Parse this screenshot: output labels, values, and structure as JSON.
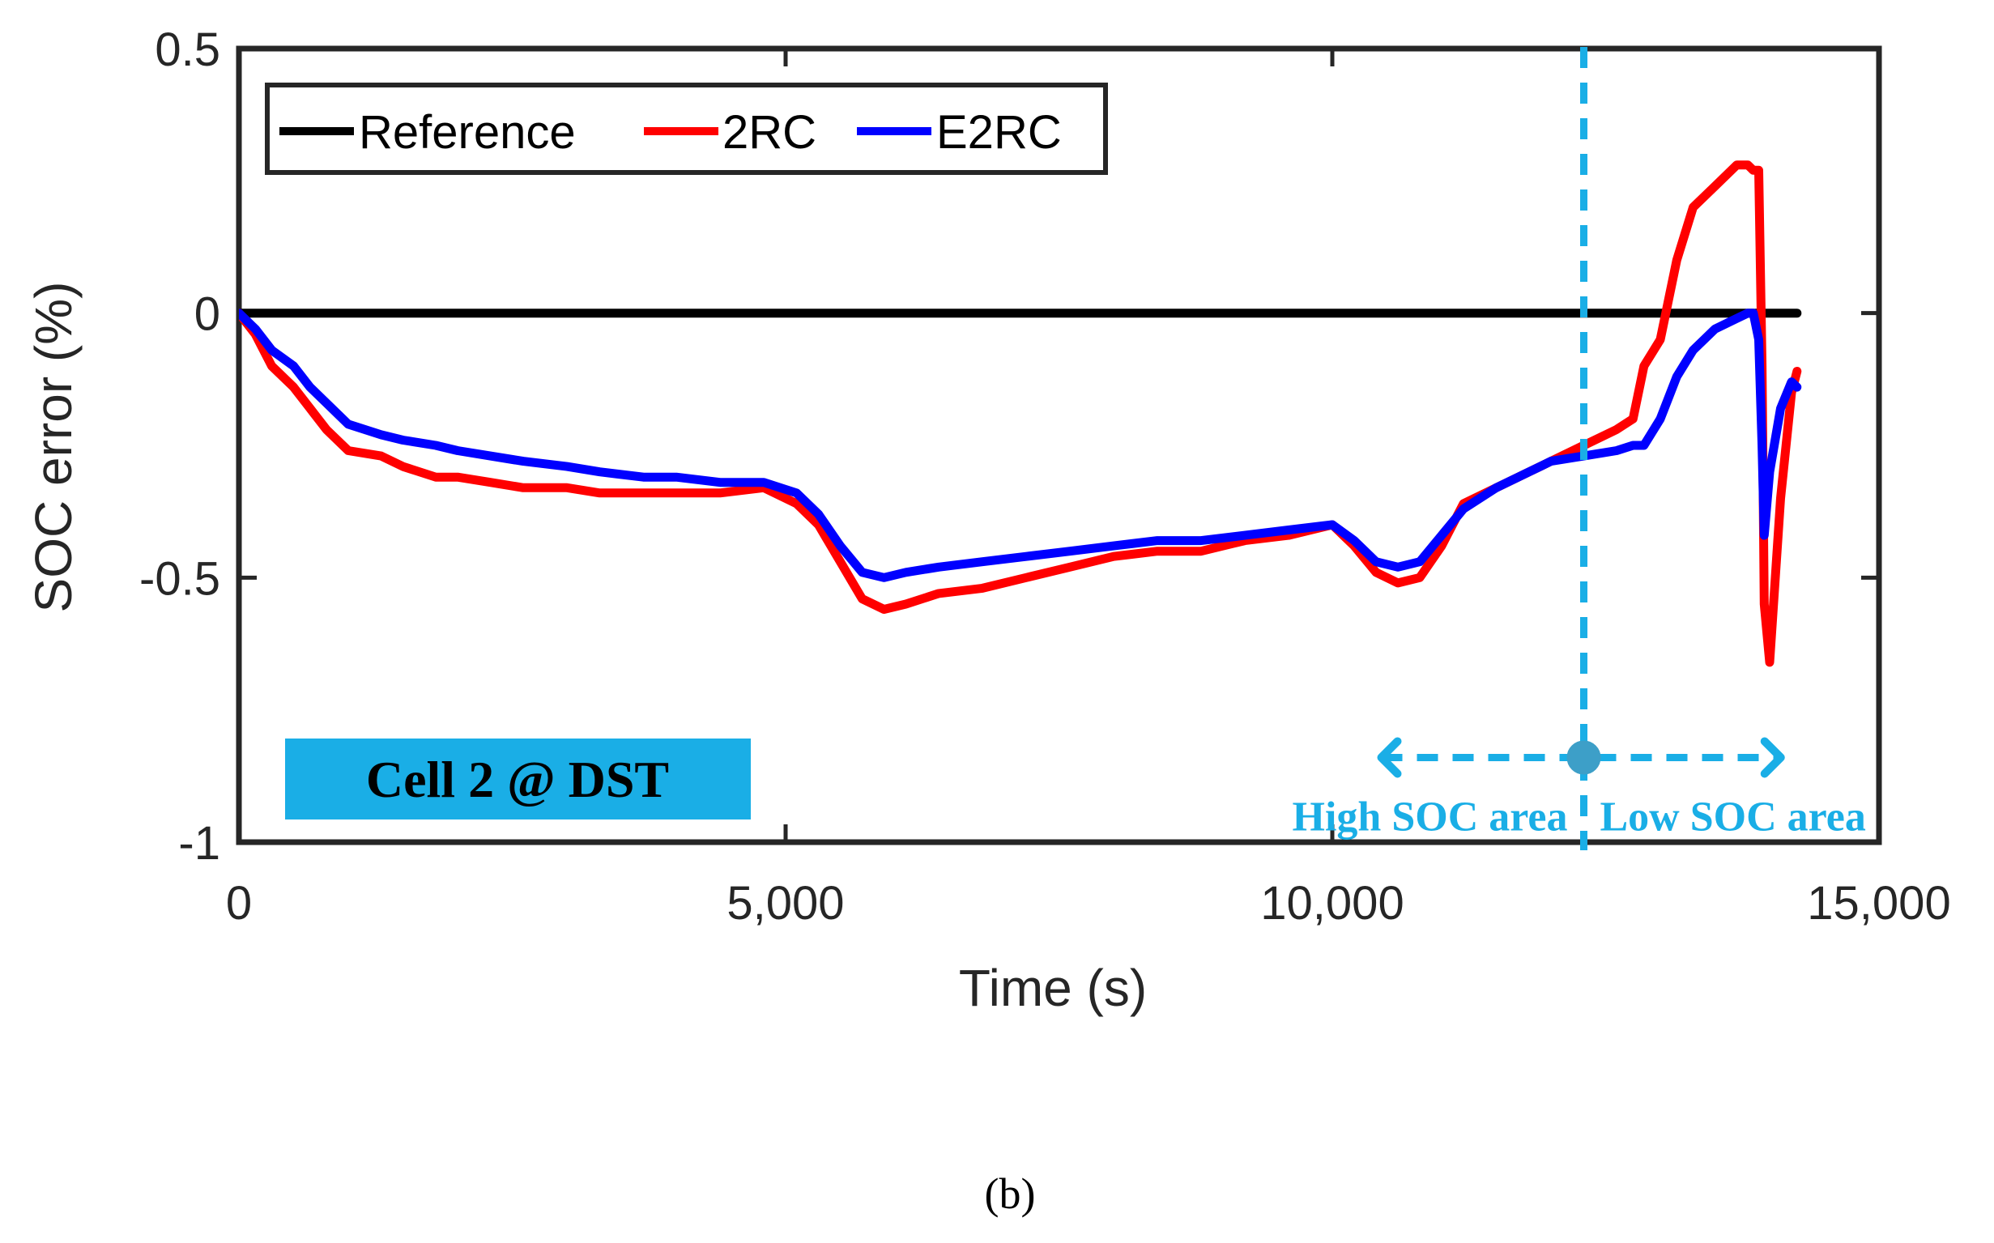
{
  "chart_data": {
    "type": "line",
    "title": "",
    "xlabel": "Time (s)",
    "ylabel": "SOC error (%)",
    "xlim": [
      0,
      15000
    ],
    "ylim": [
      -1,
      0.5
    ],
    "xticks": [
      0,
      5000,
      10000,
      15000
    ],
    "xtick_labels": [
      "0",
      "5,000",
      "10,000",
      "15,000"
    ],
    "yticks": [
      -1,
      -0.5,
      0,
      0.5
    ],
    "ytick_labels": [
      "-1",
      "-0.5",
      "0",
      "0.5"
    ],
    "grid": false,
    "legend_position": "top-left",
    "series": [
      {
        "name": "Reference",
        "color": "#000000",
        "x": [
          0,
          14250
        ],
        "y": [
          0,
          0
        ]
      },
      {
        "name": "2RC",
        "color": "#ff0000",
        "x": [
          0,
          150,
          300,
          500,
          650,
          800,
          1000,
          1300,
          1500,
          1800,
          2000,
          2300,
          2600,
          3000,
          3300,
          3700,
          4000,
          4400,
          4800,
          5100,
          5300,
          5500,
          5700,
          5900,
          6100,
          6400,
          6800,
          7200,
          7600,
          8000,
          8400,
          8800,
          9200,
          9600,
          10000,
          10200,
          10400,
          10600,
          10800,
          11000,
          11200,
          11500,
          11800,
          12000,
          12300,
          12600,
          12750,
          12850,
          13000,
          13150,
          13300,
          13500,
          13700,
          13800,
          13850,
          13900,
          13930,
          13950,
          14000,
          14100,
          14200,
          14250
        ],
        "y": [
          0,
          -0.04,
          -0.1,
          -0.14,
          -0.18,
          -0.22,
          -0.26,
          -0.27,
          -0.29,
          -0.31,
          -0.31,
          -0.32,
          -0.33,
          -0.33,
          -0.34,
          -0.34,
          -0.34,
          -0.34,
          -0.33,
          -0.36,
          -0.4,
          -0.47,
          -0.54,
          -0.56,
          -0.55,
          -0.53,
          -0.52,
          -0.5,
          -0.48,
          -0.46,
          -0.45,
          -0.45,
          -0.43,
          -0.42,
          -0.4,
          -0.44,
          -0.49,
          -0.51,
          -0.5,
          -0.44,
          -0.36,
          -0.33,
          -0.3,
          -0.28,
          -0.25,
          -0.22,
          -0.2,
          -0.1,
          -0.05,
          0.1,
          0.2,
          0.24,
          0.28,
          0.28,
          0.27,
          0.27,
          -0.1,
          -0.55,
          -0.66,
          -0.35,
          -0.15,
          -0.11
        ]
      },
      {
        "name": "E2RC",
        "color": "#0000ff",
        "x": [
          0,
          150,
          300,
          500,
          650,
          800,
          1000,
          1300,
          1500,
          1800,
          2000,
          2300,
          2600,
          3000,
          3300,
          3700,
          4000,
          4400,
          4800,
          5100,
          5300,
          5500,
          5700,
          5900,
          6100,
          6400,
          6800,
          7200,
          7600,
          8000,
          8400,
          8800,
          9200,
          9600,
          10000,
          10200,
          10400,
          10600,
          10800,
          11000,
          11200,
          11500,
          11800,
          12000,
          12300,
          12600,
          12750,
          12850,
          13000,
          13150,
          13300,
          13500,
          13700,
          13800,
          13850,
          13900,
          13930,
          13950,
          14000,
          14100,
          14200,
          14250
        ],
        "y": [
          0,
          -0.03,
          -0.07,
          -0.1,
          -0.14,
          -0.17,
          -0.21,
          -0.23,
          -0.24,
          -0.25,
          -0.26,
          -0.27,
          -0.28,
          -0.29,
          -0.3,
          -0.31,
          -0.31,
          -0.32,
          -0.32,
          -0.34,
          -0.38,
          -0.44,
          -0.49,
          -0.5,
          -0.49,
          -0.48,
          -0.47,
          -0.46,
          -0.45,
          -0.44,
          -0.43,
          -0.43,
          -0.42,
          -0.41,
          -0.4,
          -0.43,
          -0.47,
          -0.48,
          -0.47,
          -0.42,
          -0.37,
          -0.33,
          -0.3,
          -0.28,
          -0.27,
          -0.26,
          -0.25,
          -0.25,
          -0.2,
          -0.12,
          -0.07,
          -0.03,
          -0.01,
          0,
          0,
          -0.05,
          -0.25,
          -0.42,
          -0.3,
          -0.18,
          -0.13,
          -0.14
        ]
      }
    ],
    "annotations": {
      "cell_label": "Cell 2 @ DST",
      "cell_label_color": "#1aaee6",
      "divider_x": 12300,
      "arrow_y": -0.84,
      "arrow_x_range": [
        10300,
        14250
      ],
      "high_soc_label": "High SOC area",
      "low_soc_label": "Low SOC area",
      "annotation_color": "#1aaee6"
    }
  },
  "caption": "(b)"
}
